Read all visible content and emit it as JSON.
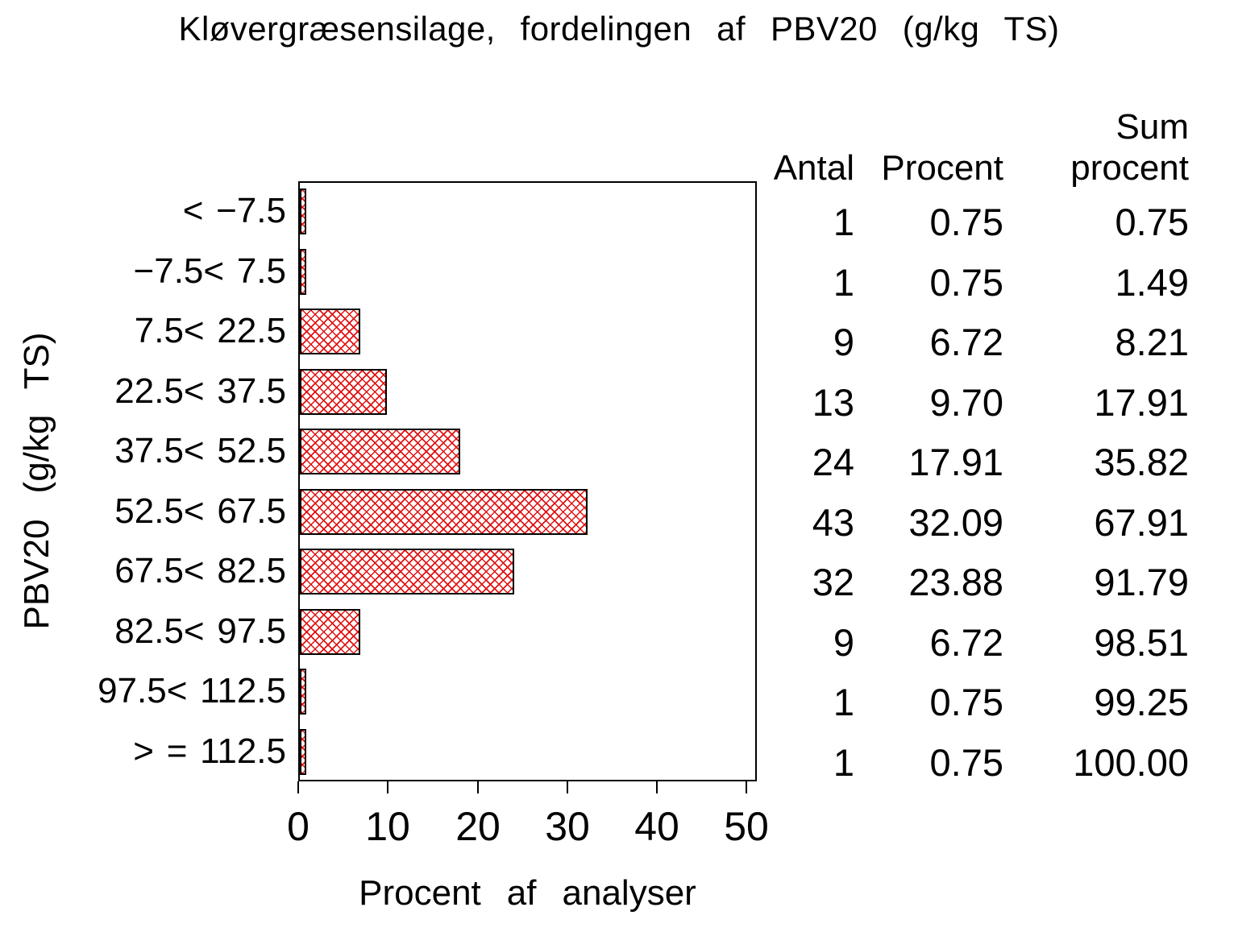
{
  "chart_data": {
    "type": "bar",
    "orientation": "horizontal",
    "title": "Kløvergræsensilage, fordelingen af PBV20 (g/kg TS)",
    "xlabel": "Procent af analyser",
    "ylabel": "PBV20 (g/kg TS)",
    "xlim": [
      0,
      50
    ],
    "xticks": [
      "0",
      "10",
      "20",
      "30",
      "40",
      "50"
    ],
    "grid": false,
    "bar_style": {
      "fill": "#ffffff",
      "hatch": "red diagonal crosshatch",
      "hatch_color": "#e01212",
      "border_color": "#000000"
    },
    "table_headers": {
      "antal": "Antal",
      "procent": "Procent",
      "sum_line1": "Sum",
      "sum_line2": "procent"
    },
    "rows": [
      {
        "label": "< −7.5",
        "antal": "1",
        "procent": "0.75",
        "sum": "0.75"
      },
      {
        "label": "−7.5< 7.5",
        "antal": "1",
        "procent": "0.75",
        "sum": "1.49"
      },
      {
        "label": "7.5< 22.5",
        "antal": "9",
        "procent": "6.72",
        "sum": "8.21"
      },
      {
        "label": "22.5< 37.5",
        "antal": "13",
        "procent": "9.70",
        "sum": "17.91"
      },
      {
        "label": "37.5< 52.5",
        "antal": "24",
        "procent": "17.91",
        "sum": "35.82"
      },
      {
        "label": "52.5< 67.5",
        "antal": "43",
        "procent": "32.09",
        "sum": "67.91"
      },
      {
        "label": "67.5< 82.5",
        "antal": "32",
        "procent": "23.88",
        "sum": "91.79"
      },
      {
        "label": "82.5< 97.5",
        "antal": "9",
        "procent": "6.72",
        "sum": "98.51"
      },
      {
        "label": "97.5< 112.5",
        "antal": "1",
        "procent": "0.75",
        "sum": "99.25"
      },
      {
        "label": "> = 112.5",
        "antal": "1",
        "procent": "0.75",
        "sum": "100.00"
      }
    ]
  }
}
